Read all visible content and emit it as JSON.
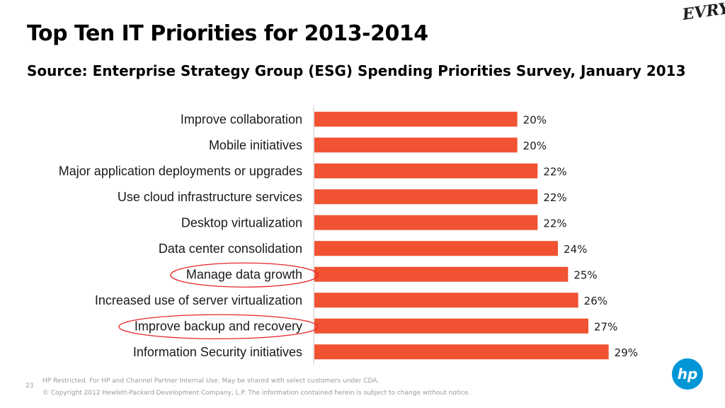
{
  "header": {
    "title": "Top Ten IT Priorities for 2013-2014",
    "subtitle": "Source: Enterprise Strategy Group (ESG) Spending Priorities Survey, January 2013",
    "logo_text": "EVRY"
  },
  "footer": {
    "page_number": "23",
    "line1": "HP Restricted. For HP and Channel Partner Internal Use. May be shared with select customers under CDA.",
    "line2": "© Copyright 2012 Hewlett-Packard Development Company, L.P.  The information contained herein is subject to change without notice.",
    "hp_logo_text": "hp"
  },
  "colors": {
    "bar": "#F05232",
    "highlight_ellipse": "#E8252A",
    "hp_logo": "#0096D6"
  },
  "chart_data": {
    "type": "bar",
    "orientation": "horizontal",
    "categories": [
      "Improve collaboration",
      "Mobile initiatives",
      "Major application deployments or upgrades",
      "Use cloud infrastructure services",
      "Desktop virtualization",
      "Data center consolidation",
      "Manage data growth",
      "Increased use of server virtualization",
      "Improve backup and recovery",
      "Information Security initiatives"
    ],
    "values": [
      20,
      20,
      22,
      22,
      22,
      24,
      25,
      26,
      27,
      29
    ],
    "value_labels": [
      "20%",
      "20%",
      "22%",
      "22%",
      "22%",
      "24%",
      "25%",
      "26%",
      "27%",
      "29%"
    ],
    "highlighted": [
      "Manage data growth",
      "Improve backup and recovery"
    ],
    "xlim": [
      0,
      30
    ],
    "grid": false,
    "axis_line": "left"
  }
}
